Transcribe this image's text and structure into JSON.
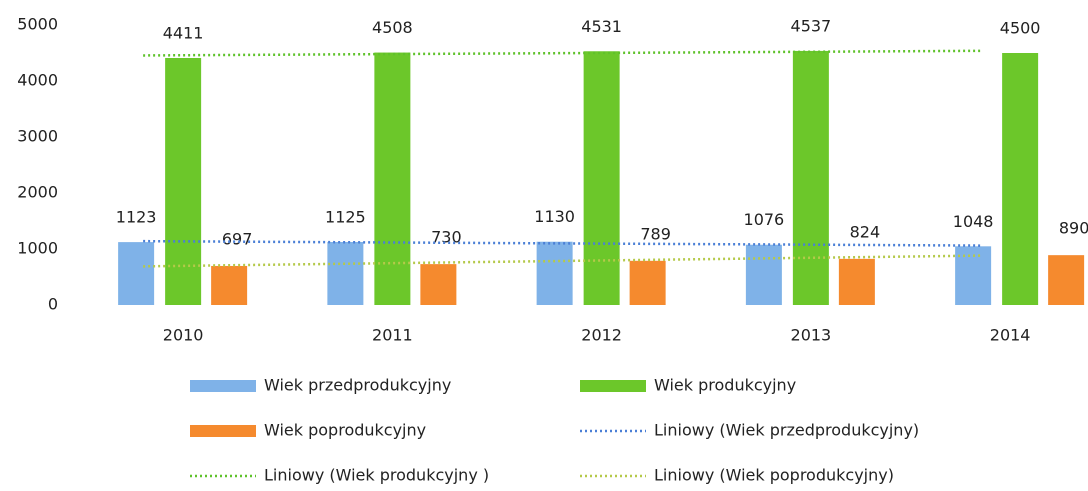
{
  "chart_data": {
    "type": "bar",
    "categories": [
      "2010",
      "2011",
      "2012",
      "2013",
      "2014"
    ],
    "series": [
      {
        "name": "Wiek przedprodukcyjny",
        "color": "#7fb2e8",
        "values": [
          1123,
          1125,
          1130,
          1076,
          1048
        ]
      },
      {
        "name": "Wiek produkcyjny",
        "color": "#6cc72a",
        "values": [
          4411,
          4508,
          4531,
          4537,
          4500
        ]
      },
      {
        "name": "Wiek poprodukcyjny",
        "color": "#f58a2e",
        "values": [
          697,
          730,
          789,
          824,
          890
        ]
      }
    ],
    "trendlines": [
      {
        "name": "Liniowy (Wiek przedprodukcyjny)",
        "color": "#4a7fd6",
        "values": [
          1140,
          1120,
          1100,
          1081,
          1061
        ]
      },
      {
        "name": "Liniowy (Wiek produkcyjny )",
        "color": "#5fc22b",
        "values": [
          4456,
          4477,
          4497,
          4518,
          4539
        ]
      },
      {
        "name": "Liniowy (Wiek poprodukcyjny)",
        "color": "#b5c94a",
        "values": [
          690,
          738,
          786,
          834,
          882
        ]
      }
    ],
    "ylim": [
      0,
      5000
    ],
    "yticks": [
      0,
      1000,
      2000,
      3000,
      4000,
      5000
    ],
    "grid": false
  }
}
